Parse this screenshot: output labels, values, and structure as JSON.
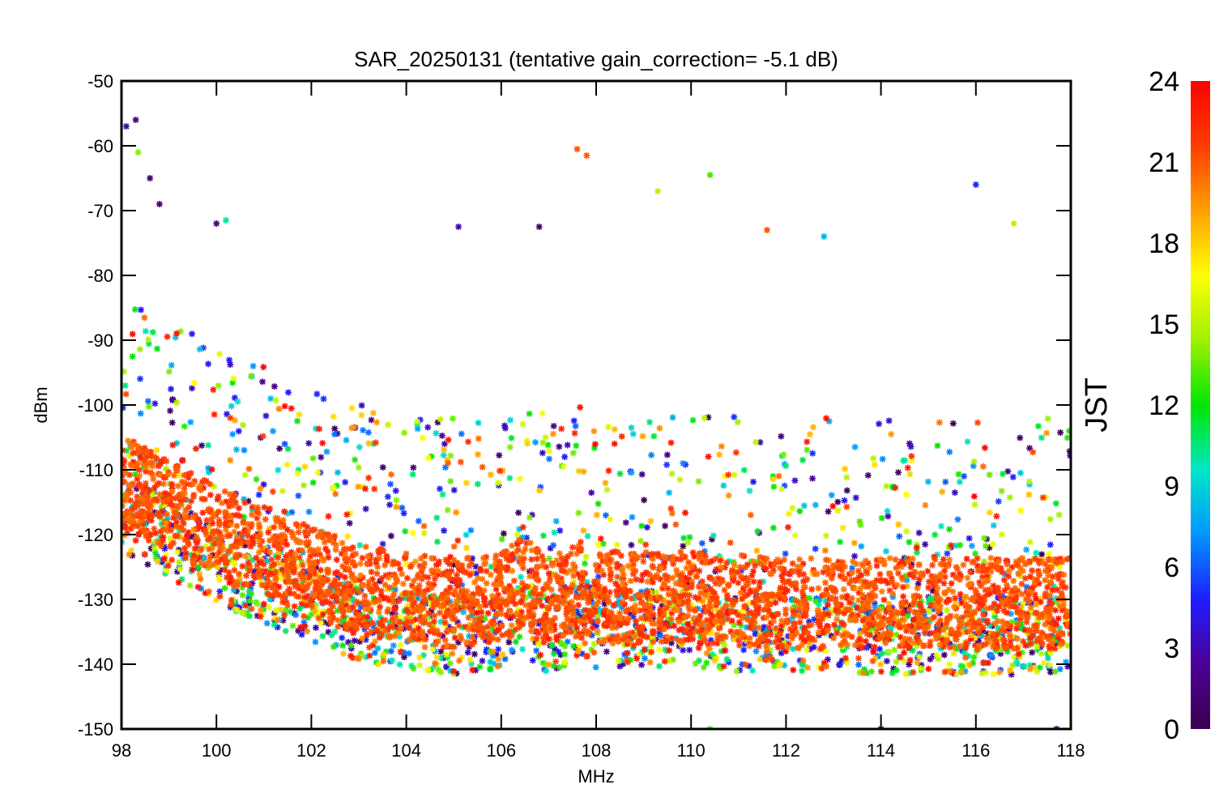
{
  "chart_data": {
    "type": "scatter",
    "title": "SAR_20250131 (tentative gain_correction= -5.1 dB)",
    "xlabel": "MHz",
    "ylabel": "dBm",
    "xlim": [
      98,
      118
    ],
    "ylim": [
      -150,
      -50
    ],
    "xticks": [
      98,
      100,
      102,
      104,
      106,
      108,
      110,
      112,
      114,
      116,
      118
    ],
    "yticks": [
      -50,
      -60,
      -70,
      -80,
      -90,
      -100,
      -110,
      -120,
      -130,
      -140,
      -150
    ],
    "grid": false,
    "marker": "asterisk",
    "colorbar": {
      "label": "JST",
      "range": [
        0,
        24
      ],
      "ticks": [
        0,
        3,
        6,
        9,
        12,
        15,
        18,
        21,
        24
      ],
      "colormap": "rainbow",
      "colors": [
        "#3a0050",
        "#4b0096",
        "#1e1eff",
        "#0096ff",
        "#00e6c8",
        "#00e600",
        "#a0f000",
        "#ffff00",
        "#ffa000",
        "#ff3c00",
        "#ff0000"
      ]
    },
    "noise_floor_profile": {
      "x": [
        98,
        99,
        100,
        101,
        102,
        103,
        104,
        105,
        106,
        106.5,
        107,
        107.5,
        108,
        109,
        110,
        112,
        114,
        116,
        118
      ],
      "y": [
        -113,
        -117,
        -121,
        -124,
        -127,
        -130,
        -131,
        -132,
        -131,
        -129,
        -132,
        -130,
        -131,
        -131,
        -131,
        -132,
        -132,
        -132,
        -132
      ]
    },
    "strong_outliers": [
      {
        "x": 98.1,
        "y": -57,
        "jst": 3
      },
      {
        "x": 98.3,
        "y": -56,
        "jst": 2
      },
      {
        "x": 98.35,
        "y": -61,
        "jst": 14
      },
      {
        "x": 98.6,
        "y": -65,
        "jst": 1
      },
      {
        "x": 98.8,
        "y": -69,
        "jst": 1
      },
      {
        "x": 100.0,
        "y": -72,
        "jst": 2
      },
      {
        "x": 100.2,
        "y": -71.5,
        "jst": 10
      },
      {
        "x": 105.1,
        "y": -72.5,
        "jst": 3
      },
      {
        "x": 106.8,
        "y": -72.5,
        "jst": 1
      },
      {
        "x": 107.6,
        "y": -60.5,
        "jst": 21
      },
      {
        "x": 107.8,
        "y": -61.5,
        "jst": 21
      },
      {
        "x": 109.3,
        "y": -67,
        "jst": 15
      },
      {
        "x": 110.4,
        "y": -64.5,
        "jst": 13
      },
      {
        "x": 111.6,
        "y": -73,
        "jst": 21
      },
      {
        "x": 112.8,
        "y": -74,
        "jst": 8
      },
      {
        "x": 116.0,
        "y": -66,
        "jst": 5
      },
      {
        "x": 116.8,
        "y": -72,
        "jst": 15
      },
      {
        "x": 110.4,
        "y": -150,
        "jst": 13
      },
      {
        "x": 114.0,
        "y": -150,
        "jst": 1
      },
      {
        "x": 117.7,
        "y": -150,
        "jst": 1
      }
    ]
  }
}
